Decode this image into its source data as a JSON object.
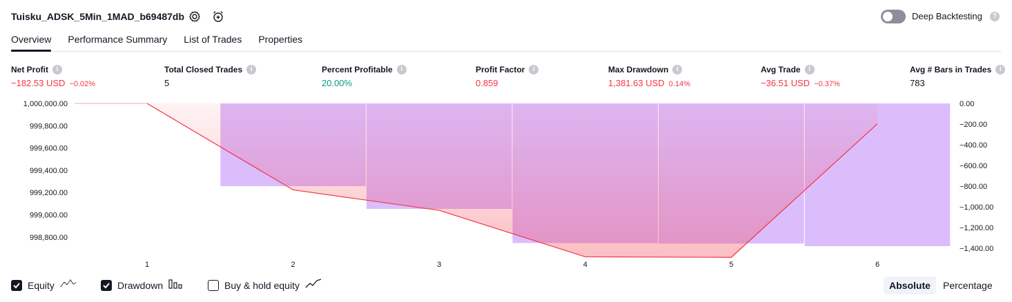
{
  "header": {
    "strategy_name": "Tuisku_ADSK_5Min_1MAD_b69487db",
    "settings_icon": "gear-icon",
    "alert_icon": "alarm-clock-plus-icon",
    "deep_backtesting_label": "Deep Backtesting",
    "deep_backtesting_on": false
  },
  "tabs": [
    {
      "label": "Overview",
      "active": true
    },
    {
      "label": "Performance Summary",
      "active": false
    },
    {
      "label": "List of Trades",
      "active": false
    },
    {
      "label": "Properties",
      "active": false
    }
  ],
  "metrics": [
    {
      "label": "Net Profit",
      "value": "−182.53 USD",
      "pct": "−0.02%",
      "tone": "neg"
    },
    {
      "label": "Total Closed Trades",
      "value": "5",
      "pct": "",
      "tone": "neutral"
    },
    {
      "label": "Percent Profitable",
      "value": "20.00%",
      "pct": "",
      "tone": "pos"
    },
    {
      "label": "Profit Factor",
      "value": "0.859",
      "pct": "",
      "tone": "neg"
    },
    {
      "label": "Max Drawdown",
      "value": "1,381.63 USD",
      "pct": "0.14%",
      "tone": "neg"
    },
    {
      "label": "Avg Trade",
      "value": "−36.51 USD",
      "pct": "−0.37%",
      "tone": "neg"
    },
    {
      "label": "Avg # Bars in Trades",
      "value": "783",
      "pct": "",
      "tone": "neutral"
    }
  ],
  "colors": {
    "equity_line": "#f23645",
    "drawdown_bar": "#dcbdfc",
    "negative": "#f23645",
    "positive": "#089981"
  },
  "chart_data": {
    "type": "line",
    "x": [
      1,
      2,
      3,
      4,
      5,
      6
    ],
    "left_axis": {
      "ticks": [
        "1,000,000.00",
        "999,800.00",
        "999,600.00",
        "999,400.00",
        "999,200.00",
        "999,000.00",
        "998,800.00"
      ],
      "tick_values": [
        1000000,
        999800,
        999600,
        999400,
        999200,
        999000,
        998800
      ],
      "ylim": [
        998700,
        1000000
      ]
    },
    "right_axis": {
      "ticks": [
        "0.00",
        "−200.00",
        "−400.00",
        "−600.00",
        "−800.00",
        "−1,000.00",
        "−1,200.00",
        "−1,400.00"
      ],
      "tick_values": [
        0,
        -200,
        -400,
        -600,
        -800,
        -1000,
        -1200,
        -1400
      ],
      "ylim": [
        -1400,
        0
      ]
    },
    "series": [
      {
        "name": "Equity",
        "kind": "line",
        "axis": "left",
        "x": [
          1,
          2,
          3,
          4,
          5,
          6
        ],
        "values": [
          1000000,
          999224,
          999040,
          998623,
          998618,
          999817
        ]
      },
      {
        "name": "Drawdown",
        "kind": "bar",
        "axis": "right",
        "x": [
          2,
          3,
          4,
          5,
          6
        ],
        "values": [
          -800,
          -1020,
          -1350,
          -1355,
          -1380
        ]
      }
    ],
    "grid": false
  },
  "footer": {
    "legend": [
      {
        "label": "Equity",
        "checked": true,
        "icon": "equity-line-icon"
      },
      {
        "label": "Drawdown",
        "checked": true,
        "icon": "drawdown-bars-icon"
      },
      {
        "label": "Buy & hold equity",
        "checked": false,
        "icon": "buy-hold-line-icon"
      }
    ],
    "mode_buttons": [
      {
        "label": "Absolute",
        "active": true
      },
      {
        "label": "Percentage",
        "active": false
      }
    ]
  }
}
